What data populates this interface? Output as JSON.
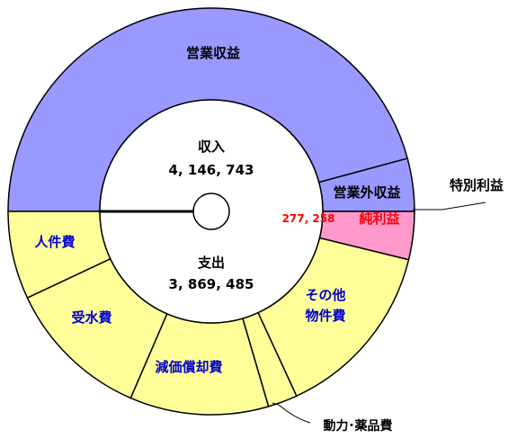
{
  "chart_data": {
    "type": "donut",
    "income": {
      "label": "収入",
      "total_text": "4, 146, 743",
      "total": 4146743,
      "segments": [
        {
          "name": "営業収益",
          "share": 0.916,
          "color": "#9999ff",
          "label_color": "#000000"
        },
        {
          "name": "営業外収益",
          "share": 0.084,
          "color": "#9999ff",
          "label_color": "#000000"
        }
      ]
    },
    "expense": {
      "label": "支出",
      "total_text": "3, 869, 485",
      "total": 3869485,
      "segments": [
        {
          "name": "純利益",
          "value_text": "277, 258",
          "value": 277258,
          "color": "#ff99cc",
          "label_color": "#ff0000"
        },
        {
          "name": "その他物件費",
          "lines": [
            "その他",
            "物件費"
          ],
          "share": 0.268,
          "color": "#ffff99",
          "label_color": "#0000cc"
        },
        {
          "name": "動力･薬品費",
          "share": 0.044,
          "color": "#ffff99",
          "label_color": "#000000"
        },
        {
          "name": "減価償却費",
          "share": 0.207,
          "color": "#ffff99",
          "label_color": "#0000cc"
        },
        {
          "name": "受水費",
          "share": 0.216,
          "color": "#ffff99",
          "label_color": "#0000cc"
        },
        {
          "name": "人件費",
          "share": 0.131,
          "color": "#ffff99",
          "label_color": "#0000cc"
        }
      ]
    },
    "callouts": [
      {
        "name": "特別利益"
      },
      {
        "name": "動力･薬品費"
      }
    ]
  }
}
